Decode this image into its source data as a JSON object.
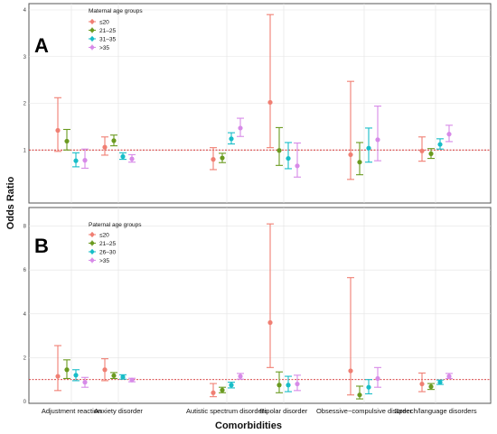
{
  "colors": {
    "series": [
      "#f07f73",
      "#6a9a1f",
      "#17bdc8",
      "#d78ae8"
    ],
    "reference_line": "#d32f2f",
    "grid": "#e3e3e3",
    "panel_border": "#555555"
  },
  "figure": {
    "xlabel": "Comorbidities",
    "ylabel": "Odds Ratio",
    "categories": [
      "Adjustment  reaction",
      "Anxiety disorder",
      "Autistic spectrum disorders",
      "Bipolar disorder",
      "Obsessive−compulsive disorder",
      "Speech/language disorders"
    ]
  },
  "chart_data": [
    {
      "type": "scatter",
      "panel": "A",
      "legend_title": "Maternal age groups",
      "ylim": [
        0,
        4
      ],
      "yticks": [
        1,
        2,
        3,
        4
      ],
      "reference_line": 1,
      "grid": true,
      "legend_position": "top-left",
      "categories": [
        "Adjustment  reaction",
        "Anxiety disorder",
        "Autistic spectrum disorders",
        "Bipolar disorder",
        "Obsessive−compulsive disorder",
        "Speech/language disorders"
      ],
      "series": [
        {
          "name": "≤20",
          "values": [
            1.42,
            1.06,
            0.8,
            2.02,
            0.9,
            0.98
          ],
          "lower": [
            0.97,
            0.89,
            0.58,
            1.05,
            0.37,
            0.76
          ],
          "upper": [
            2.12,
            1.28,
            1.05,
            3.9,
            2.47,
            1.28
          ]
        },
        {
          "name": "21–25",
          "values": [
            1.19,
            1.2,
            0.83,
            0.99,
            0.74,
            0.92
          ],
          "lower": [
            1.0,
            1.09,
            0.73,
            0.67,
            0.47,
            0.82
          ],
          "upper": [
            1.44,
            1.32,
            0.93,
            1.48,
            1.16,
            1.03
          ]
        },
        {
          "name": "31–35",
          "values": [
            0.77,
            0.86,
            1.24,
            0.82,
            1.04,
            1.12
          ],
          "lower": [
            0.64,
            0.8,
            1.13,
            0.6,
            0.74,
            1.02
          ],
          "upper": [
            0.94,
            0.94,
            1.37,
            1.16,
            1.47,
            1.24
          ]
        },
        {
          "name": ">35",
          "values": [
            0.78,
            0.81,
            1.47,
            0.66,
            1.22,
            1.34
          ],
          "lower": [
            0.61,
            0.74,
            1.29,
            0.42,
            0.77,
            1.18
          ],
          "upper": [
            1.02,
            0.9,
            1.68,
            1.15,
            1.94,
            1.53
          ]
        }
      ]
    },
    {
      "type": "scatter",
      "panel": "B",
      "legend_title": "Paternal age groups",
      "ylim": [
        0,
        8.6
      ],
      "yticks": [
        0,
        2,
        4,
        6,
        8
      ],
      "reference_line": 1,
      "grid": true,
      "legend_position": "top-left",
      "categories": [
        "Adjustment  reaction",
        "Anxiety disorder",
        "Autistic spectrum disorders",
        "Bipolar disorder",
        "Obsessive−compulsive disorder",
        "Speech/language disorders"
      ],
      "series": [
        {
          "name": "≤20",
          "values": [
            1.15,
            1.45,
            0.4,
            3.6,
            1.4,
            0.8
          ],
          "lower": [
            0.5,
            0.95,
            0.22,
            1.55,
            0.3,
            0.45
          ],
          "upper": [
            2.55,
            1.95,
            0.82,
            8.1,
            5.65,
            1.3
          ]
        },
        {
          "name": "21–25",
          "values": [
            1.45,
            1.18,
            0.52,
            0.75,
            0.3,
            0.68
          ],
          "lower": [
            1.05,
            1.05,
            0.4,
            0.4,
            0.12,
            0.55
          ],
          "upper": [
            1.9,
            1.32,
            0.65,
            1.35,
            0.7,
            0.82
          ]
        },
        {
          "name": "26–30",
          "values": [
            1.2,
            1.12,
            0.75,
            0.75,
            0.65,
            0.88
          ],
          "lower": [
            0.95,
            1.02,
            0.62,
            0.45,
            0.35,
            0.78
          ],
          "upper": [
            1.45,
            1.22,
            0.88,
            1.15,
            1.0,
            0.98
          ]
        },
        {
          "name": ">35",
          "values": [
            0.88,
            0.98,
            1.15,
            0.8,
            1.05,
            1.15
          ],
          "lower": [
            0.65,
            0.9,
            1.02,
            0.5,
            0.65,
            1.05
          ],
          "upper": [
            1.1,
            1.06,
            1.28,
            1.2,
            1.55,
            1.28
          ]
        }
      ]
    }
  ]
}
